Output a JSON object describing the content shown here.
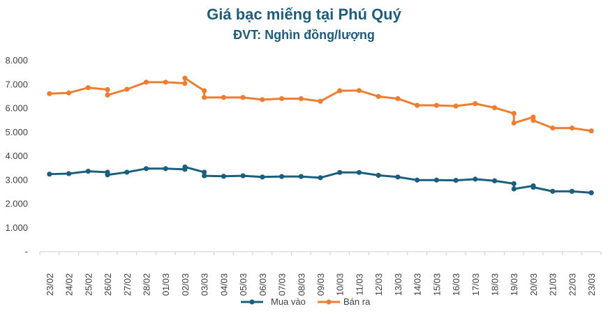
{
  "chart_data": {
    "type": "line",
    "title": "Giá bạc miếng tại Phú Quý",
    "subtitle": "ĐVT: Nghìn đồng/lượng",
    "categories": [
      "23/02",
      "24/02",
      "25/02",
      "26/02",
      "27/02",
      "28/02",
      "01/03",
      "02/03",
      "03/03",
      "04/03",
      "05/03",
      "06/03",
      "07/03",
      "08/03",
      "09/03",
      "10/03",
      "11/03",
      "12/03",
      "13/03",
      "14/03",
      "15/03",
      "16/03",
      "17/03",
      "18/03",
      "19/03",
      "20/03",
      "21/03",
      "22/03",
      "23/03"
    ],
    "y_ticks": [
      "-",
      "1.000",
      "2.000",
      "3.000",
      "4.000",
      "5.000",
      "6.000",
      "7.000",
      "8.000"
    ],
    "ylim": [
      0,
      8000
    ],
    "series": [
      {
        "name": "Mua vào",
        "color": "#1b5f7e",
        "points": [
          [
            0,
            3250
          ],
          [
            1,
            3270
          ],
          [
            2,
            3370
          ],
          [
            3,
            3330
          ],
          [
            3,
            3220
          ],
          [
            4,
            3330
          ],
          [
            5,
            3480
          ],
          [
            6,
            3480
          ],
          [
            7,
            3450
          ],
          [
            7,
            3550
          ],
          [
            8,
            3330
          ],
          [
            8,
            3180
          ],
          [
            9,
            3160
          ],
          [
            10,
            3180
          ],
          [
            11,
            3130
          ],
          [
            12,
            3150
          ],
          [
            13,
            3150
          ],
          [
            14,
            3100
          ],
          [
            15,
            3320
          ],
          [
            16,
            3320
          ],
          [
            17,
            3200
          ],
          [
            18,
            3130
          ],
          [
            19,
            3000
          ],
          [
            20,
            3000
          ],
          [
            21,
            2990
          ],
          [
            22,
            3040
          ],
          [
            23,
            2970
          ],
          [
            24,
            2850
          ],
          [
            24,
            2630
          ],
          [
            25,
            2760
          ],
          [
            25,
            2700
          ],
          [
            26,
            2530
          ],
          [
            27,
            2530
          ],
          [
            28,
            2470
          ]
        ]
      },
      {
        "name": "Bán ra",
        "color": "#ed7d31",
        "points": [
          [
            0,
            6620
          ],
          [
            1,
            6650
          ],
          [
            2,
            6870
          ],
          [
            3,
            6790
          ],
          [
            3,
            6560
          ],
          [
            4,
            6800
          ],
          [
            5,
            7100
          ],
          [
            6,
            7100
          ],
          [
            7,
            7050
          ],
          [
            7,
            7270
          ],
          [
            8,
            6740
          ],
          [
            8,
            6460
          ],
          [
            9,
            6460
          ],
          [
            10,
            6460
          ],
          [
            11,
            6370
          ],
          [
            12,
            6410
          ],
          [
            13,
            6410
          ],
          [
            14,
            6300
          ],
          [
            15,
            6740
          ],
          [
            16,
            6750
          ],
          [
            17,
            6500
          ],
          [
            18,
            6410
          ],
          [
            19,
            6130
          ],
          [
            20,
            6130
          ],
          [
            21,
            6100
          ],
          [
            22,
            6200
          ],
          [
            23,
            6030
          ],
          [
            24,
            5790
          ],
          [
            24,
            5390
          ],
          [
            25,
            5640
          ],
          [
            25,
            5500
          ],
          [
            26,
            5180
          ],
          [
            27,
            5180
          ],
          [
            28,
            5060
          ]
        ]
      }
    ],
    "legend_position": "bottom-center"
  }
}
